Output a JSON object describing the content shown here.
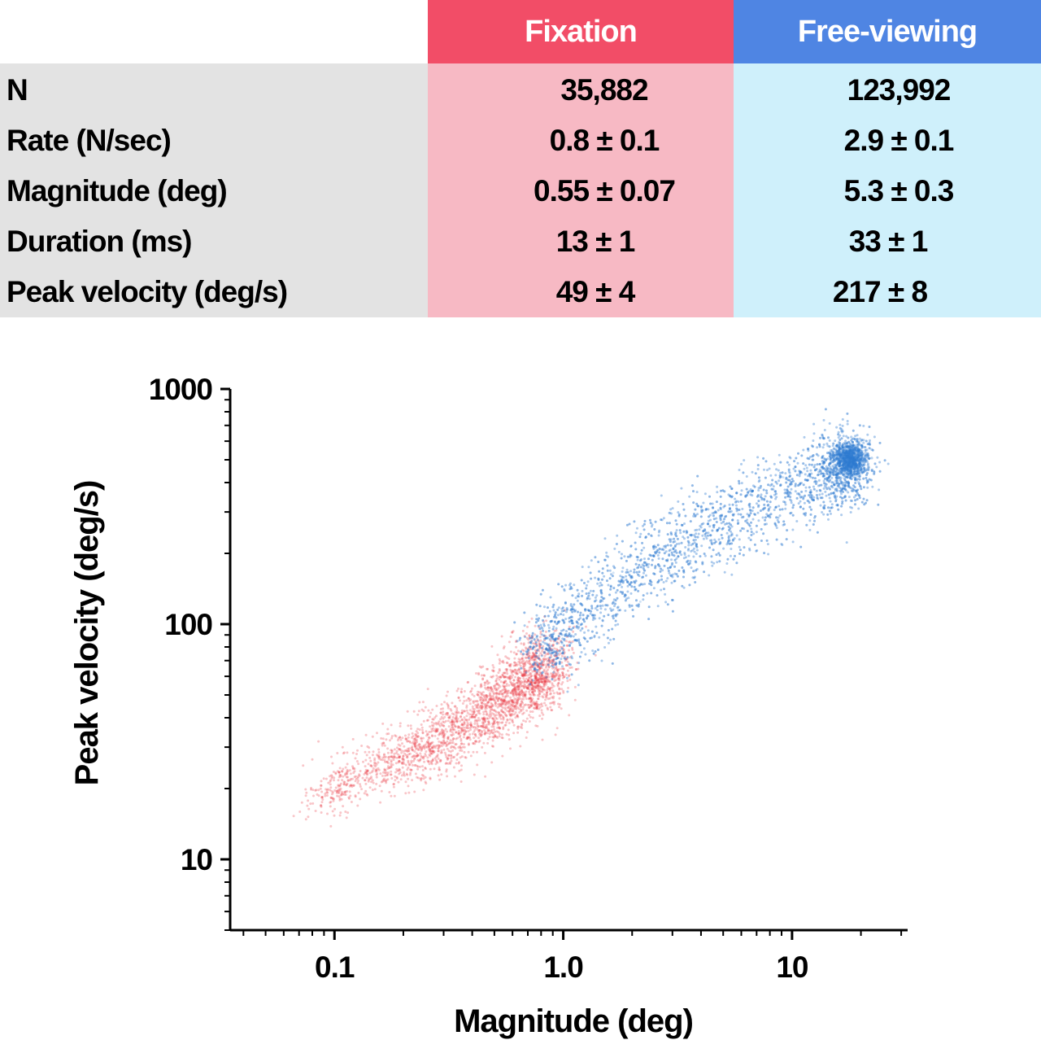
{
  "table": {
    "headers": [
      {
        "label": "Fixation",
        "color": "#f24d67",
        "cell_color": "#f7b9c4"
      },
      {
        "label": "Free-viewing",
        "color": "#4f85e3",
        "cell_color": "#cff0fb"
      }
    ],
    "rows": [
      {
        "label": "N",
        "fixation": "35,882",
        "free": "123,992"
      },
      {
        "label": "Rate (N/sec)",
        "fixation": "0.8 ± 0.1",
        "free": "2.9 ± 0.1"
      },
      {
        "label": "Magnitude (deg)",
        "fixation": "0.55 ± 0.07",
        "free": "5.3 ± 0.3"
      },
      {
        "label": "Duration (ms)",
        "fixation": "13 ± 1",
        "free": "33 ± 1"
      },
      {
        "label": "Peak velocity (deg/s)",
        "fixation": "49 ± 4",
        "free": "217 ± 8"
      }
    ]
  },
  "chart_data": {
    "type": "scatter",
    "title": "",
    "xlabel": "Magnitude (deg)",
    "ylabel": "Peak velocity (deg/s)",
    "xscale": "log",
    "yscale": "log",
    "xlim": [
      0.035,
      32
    ],
    "ylim": [
      5,
      1000
    ],
    "xticks": [
      {
        "value": 0.1,
        "label": "0.1"
      },
      {
        "value": 1.0,
        "label": "1.0"
      },
      {
        "value": 10,
        "label": "10"
      }
    ],
    "yticks": [
      {
        "value": 10,
        "label": "10"
      },
      {
        "value": 100,
        "label": "100"
      },
      {
        "value": 1000,
        "label": "1000"
      }
    ],
    "grid": false,
    "series": [
      {
        "color": "#e8333c",
        "x_range": [
          0.065,
          0.9
        ],
        "y_range": [
          14,
          75
        ],
        "center": [
          0.42,
          38
        ],
        "points": [
          [
            0.08,
            18
          ],
          [
            0.12,
            22
          ],
          [
            0.2,
            27
          ],
          [
            0.3,
            33
          ],
          [
            0.45,
            41
          ],
          [
            0.6,
            50
          ],
          [
            0.75,
            60
          ],
          [
            0.85,
            68
          ]
        ]
      },
      {
        "color": "#2f7ad1",
        "x_range": [
          0.3,
          22
        ],
        "y_range": [
          30,
          620
        ],
        "center": [
          3.0,
          230
        ],
        "points": [
          [
            0.5,
            50
          ],
          [
            0.8,
            72
          ],
          [
            1.0,
            95
          ],
          [
            1.5,
            130
          ],
          [
            2.5,
            185
          ],
          [
            4,
            240
          ],
          [
            6,
            300
          ],
          [
            10,
            370
          ],
          [
            16,
            450
          ],
          [
            18,
            500
          ]
        ]
      }
    ]
  }
}
